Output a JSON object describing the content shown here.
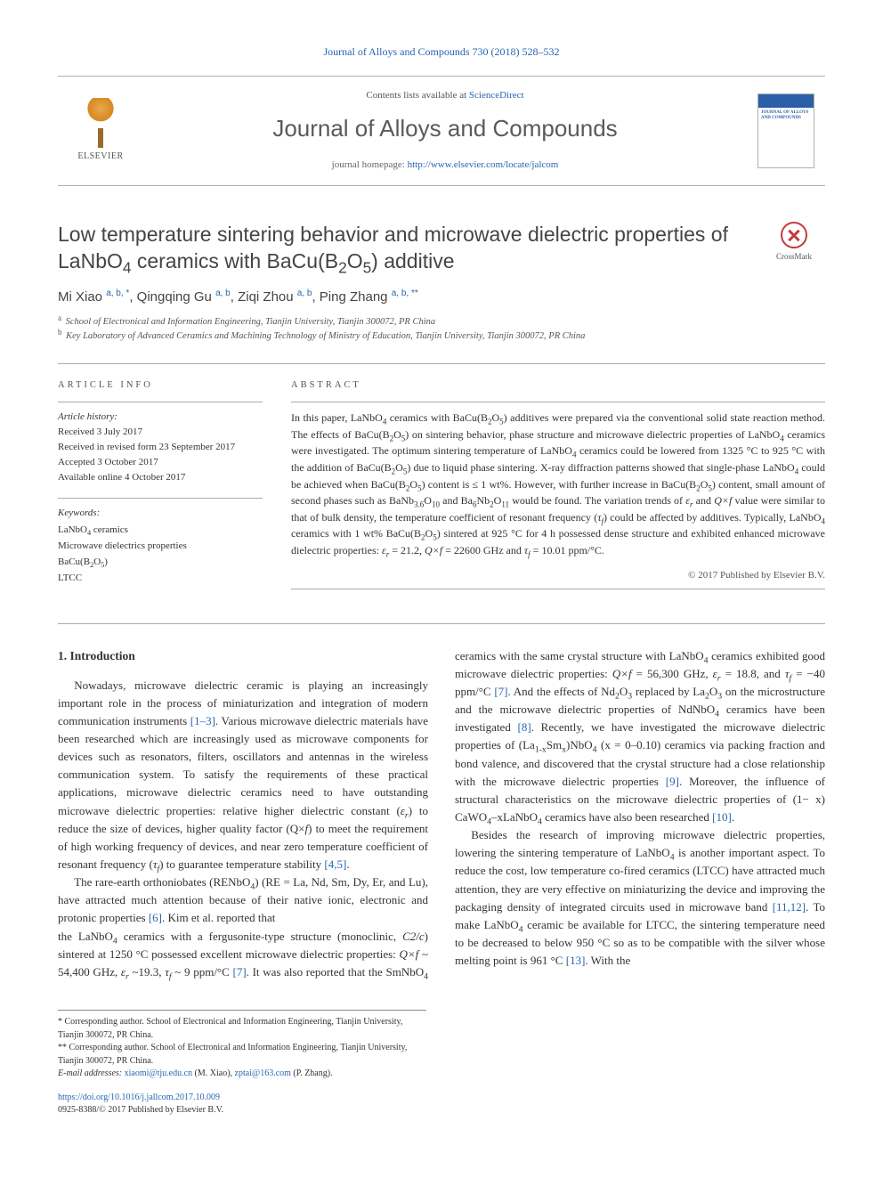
{
  "citation": "Journal of Alloys and Compounds 730 (2018) 528–532",
  "masthead": {
    "publisher": "ELSEVIER",
    "contents_prefix": "Contents lists available at ",
    "contents_link": "ScienceDirect",
    "journal": "Journal of Alloys and Compounds",
    "homepage_prefix": "journal homepage: ",
    "homepage_url": "http://www.elsevier.com/locate/jalcom",
    "cover_title": "JOURNAL OF ALLOYS AND COMPOUNDS"
  },
  "title_html": "Low temperature sintering behavior and microwave dielectric properties of LaNbO<sub>4</sub> ceramics with BaCu(B<sub>2</sub>O<sub>5</sub>) additive",
  "crossmark_label": "CrossMark",
  "authors_html": "Mi Xiao <sup>a, b, *</sup>, Qingqing Gu <sup>a, b</sup>, Ziqi Zhou <sup>a, b</sup>, Ping Zhang <sup>a, b, **</sup>",
  "affiliations": [
    {
      "mark": "a",
      "text": "School of Electronical and Information Engineering, Tianjin University, Tianjin 300072, PR China"
    },
    {
      "mark": "b",
      "text": "Key Laboratory of Advanced Ceramics and Machining Technology of Ministry of Education, Tianjin University, Tianjin 300072, PR China"
    }
  ],
  "article_info": {
    "heading": "ARTICLE INFO",
    "history_label": "Article history:",
    "history": [
      "Received 3 July 2017",
      "Received in revised form 23 September 2017",
      "Accepted 3 October 2017",
      "Available online 4 October 2017"
    ],
    "keywords_label": "Keywords:",
    "keywords_html": [
      "LaNbO<sub>4</sub> ceramics",
      "Microwave dielectrics properties",
      "BaCu(B<sub>2</sub>O<sub>5</sub>)",
      "LTCC"
    ]
  },
  "abstract": {
    "heading": "ABSTRACT",
    "text_html": "In this paper, LaNbO<sub>4</sub> ceramics with BaCu(B<sub>2</sub>O<sub>5</sub>) additives were prepared via the conventional solid state reaction method. The effects of BaCu(B<sub>2</sub>O<sub>5</sub>) on sintering behavior, phase structure and microwave dielectric properties of LaNbO<sub>4</sub> ceramics were investigated. The optimum sintering temperature of LaNbO<sub>4</sub> ceramics could be lowered from 1325 °C to 925 °C with the addition of BaCu(B<sub>2</sub>O<sub>5</sub>) due to liquid phase sintering. X-ray diffraction patterns showed that single-phase LaNbO<sub>4</sub> could be achieved when BaCu(B<sub>2</sub>O<sub>5</sub>) content is ≤ 1 wt%. However, with further increase in BaCu(B<sub>2</sub>O<sub>5</sub>) content, small amount of second phases such as BaNb<sub>3.6</sub>O<sub>10</sub> and Ba<sub>6</sub>Nb<sub>2</sub>O<sub>11</sub> would be found. The variation trends of <i>ε<sub>r</sub></i> and <i>Q×f</i> value were similar to that of bulk density, the temperature coefficient of resonant frequency (<i>τ<sub>f</sub></i>) could be affected by additives. Typically, LaNbO<sub>4</sub> ceramics with 1 wt% BaCu(B<sub>2</sub>O<sub>5</sub>) sintered at 925 °C for 4 h possessed dense structure and exhibited enhanced microwave dielectric properties: <i>ε<sub>r</sub></i> = 21.2, <i>Q×f</i> = 22600 GHz and <i>τ<sub>f</sub></i> = 10.01 ppm/°C.",
    "copyright": "© 2017 Published by Elsevier B.V."
  },
  "section1": {
    "heading": "1. Introduction",
    "p1_html": "Nowadays, microwave dielectric ceramic is playing an increasingly important role in the process of miniaturization and integration of modern communication instruments <a href='#'>[1–3]</a>. Various microwave dielectric materials have been researched which are increasingly used as microwave components for devices such as resonators, filters, oscillators and antennas in the wireless communication system. To satisfy the requirements of these practical applications, microwave dielectric ceramics need to have outstanding microwave dielectric properties: relative higher dielectric constant (<i>ε<sub>r</sub></i>) to reduce the size of devices, higher quality factor (Q×<i>f</i>) to meet the requirement of high working frequency of devices, and near zero temperature coefficient of resonant frequency (<i>τ<sub>f</sub></i>) to guarantee temperature stability <a href='#'>[4,5]</a>.",
    "p2_html": "The rare-earth orthoniobates (RENbO<sub>4</sub>) (RE = La, Nd, Sm, Dy, Er, and Lu), have attracted much attention because of their native ionic, electronic and protonic properties <a href='#'>[6]</a>. Kim et al. reported that",
    "p3_html": "the LaNbO<sub>4</sub> ceramics with a fergusonite-type structure (monoclinic, <i>C2/c</i>) sintered at 1250 °C possessed excellent microwave dielectric properties: <i>Q×f</i> ~ 54,400 GHz, <i>ε<sub>r</sub></i> ~19.3, <i>τ<sub>f</sub></i> ~ 9 ppm/°C <a href='#'>[7]</a>. It was also reported that the SmNbO<sub>4</sub> ceramics with the same crystal structure with LaNbO<sub>4</sub> ceramics exhibited good microwave dielectric properties: <i>Q×f</i> = 56,300 GHz, <i>ε<sub>r</sub></i> = 18.8, and <i>τ<sub>f</sub></i> = −40 ppm/°C <a href='#'>[7]</a>. And the effects of Nd<sub>2</sub>O<sub>3</sub> replaced by La<sub>2</sub>O<sub>3</sub> on the microstructure and the microwave dielectric properties of NdNbO<sub>4</sub> ceramics have been investigated <a href='#'>[8]</a>. Recently, we have investigated the microwave dielectric properties of (La<sub>1-x</sub>Sm<sub>x</sub>)NbO<sub>4</sub> (x = 0–0.10) ceramics via packing fraction and bond valence, and discovered that the crystal structure had a close relationship with the microwave dielectric properties <a href='#'>[9]</a>. Moreover, the influence of structural characteristics on the microwave dielectric properties of (1− x) CaWO<sub>4</sub>–xLaNbO<sub>4</sub> ceramics have also been researched <a href='#'>[10]</a>.",
    "p4_html": "Besides the research of improving microwave dielectric properties, lowering the sintering temperature of LaNbO<sub>4</sub> is another important aspect. To reduce the cost, low temperature co-fired ceramics (LTCC) have attracted much attention, they are very effective on miniaturizing the device and improving the packaging density of integrated circuits used in microwave band <a href='#'>[11,12]</a>. To make LaNbO<sub>4</sub> ceramic be available for LTCC, the sintering temperature need to be decreased to below 950 °C so as to be compatible with the silver whose melting point is 961 °C <a href='#'>[13]</a>. With the"
  },
  "footnotes": {
    "n1": "* Corresponding author. School of Electronical and Information Engineering, Tianjin University, Tianjin 300072, PR China.",
    "n2": "** Corresponding author. School of Electronical and Information Engineering, Tianjin University, Tianjin 300072, PR China.",
    "emails_label": "E-mail addresses:",
    "email1": "xiaomi@tju.edu.cn",
    "email1_who": " (M. Xiao), ",
    "email2": "zptai@163.com",
    "email2_who": " (P. Zhang)."
  },
  "doi": {
    "url": "https://doi.org/10.1016/j.jallcom.2017.10.009",
    "issn_line": "0925-8388/© 2017 Published by Elsevier B.V."
  }
}
